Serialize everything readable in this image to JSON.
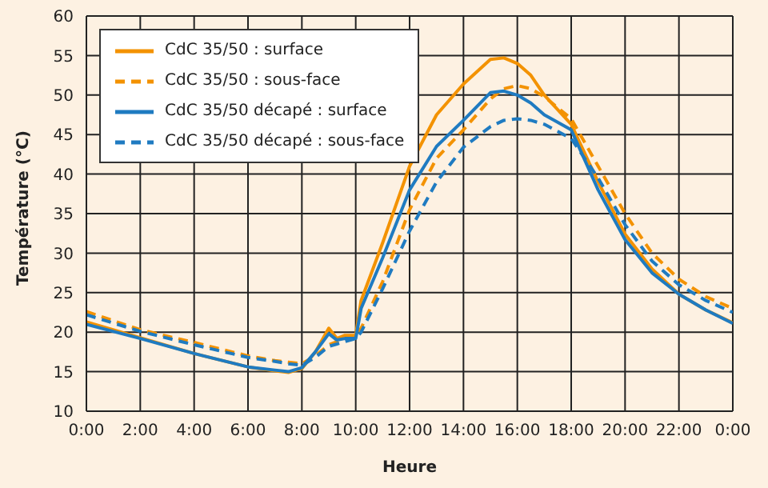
{
  "chart_data": {
    "type": "line",
    "xlabel": "Heure",
    "ylabel": "Température (°C)",
    "x": [
      0,
      2,
      4,
      6,
      7,
      7.5,
      8,
      8.5,
      9,
      9.3,
      9.6,
      10,
      10.2,
      11,
      12,
      13,
      14,
      15,
      15.5,
      16,
      16.5,
      17,
      18,
      19,
      20,
      21,
      22,
      23,
      24
    ],
    "series": [
      {
        "name": "CdC 35/50 : surface",
        "color": "#f39200",
        "line_style": "solid",
        "values": [
          21.3,
          19.3,
          17.3,
          15.6,
          15.1,
          14.9,
          15.4,
          17.5,
          20.5,
          19.2,
          19.6,
          19.6,
          24,
          31.3,
          41,
          47.5,
          51.4,
          54.5,
          54.7,
          54,
          52.5,
          50,
          46.3,
          39,
          32.4,
          28,
          24.8,
          22.8,
          21.2
        ]
      },
      {
        "name": "CdC 35/50 : sous-face",
        "color": "#f39200",
        "line_style": "dashed",
        "values": [
          22.6,
          20.3,
          18.7,
          17,
          16.4,
          16.2,
          16,
          17,
          18.4,
          18.8,
          19.2,
          19.6,
          20.5,
          26.4,
          35.5,
          42,
          45.6,
          49.5,
          50.8,
          51.2,
          50.8,
          49.8,
          47,
          41,
          35,
          30,
          26.7,
          24.5,
          23
        ]
      },
      {
        "name": "CdC 35/50 décapé : surface",
        "color": "#1f7bc1",
        "line_style": "solid",
        "values": [
          21,
          19.2,
          17.3,
          15.6,
          15.2,
          15,
          15.5,
          17.5,
          19.8,
          19,
          19.2,
          19.2,
          23,
          29.4,
          38,
          43.5,
          46.8,
          50.3,
          50.5,
          50,
          49,
          47.5,
          45.6,
          38,
          31.7,
          27.5,
          24.8,
          22.8,
          21.1
        ]
      },
      {
        "name": "CdC 35/50 décapé : sous-face",
        "color": "#1f7bc1",
        "line_style": "dashed",
        "values": [
          22.2,
          20.1,
          18.4,
          16.8,
          16.3,
          16,
          15.8,
          16.8,
          18.2,
          18.5,
          18.8,
          19.2,
          20,
          25.5,
          32.8,
          39,
          43.4,
          46,
          46.8,
          47,
          46.8,
          46.3,
          44.5,
          39.5,
          33.6,
          29,
          26,
          24,
          22.5
        ]
      }
    ],
    "xlim": [
      0,
      24
    ],
    "xticks": [
      {
        "value": 0,
        "label": "0:00"
      },
      {
        "value": 2,
        "label": "2:00"
      },
      {
        "value": 4,
        "label": "4:00"
      },
      {
        "value": 6,
        "label": "6:00"
      },
      {
        "value": 8,
        "label": "8:00"
      },
      {
        "value": 10,
        "label": "10:00"
      },
      {
        "value": 12,
        "label": "12:00"
      },
      {
        "value": 14,
        "label": "14:00"
      },
      {
        "value": 16,
        "label": "16:00"
      },
      {
        "value": 18,
        "label": "18:00"
      },
      {
        "value": 20,
        "label": "20:00"
      },
      {
        "value": 22,
        "label": "22:00"
      },
      {
        "value": 24,
        "label": "0:00"
      }
    ],
    "ylim": [
      10,
      60
    ],
    "yticks": [
      10,
      15,
      20,
      25,
      30,
      35,
      40,
      45,
      50,
      55,
      60
    ],
    "grid": true,
    "legend": "top left",
    "marker": "none"
  }
}
